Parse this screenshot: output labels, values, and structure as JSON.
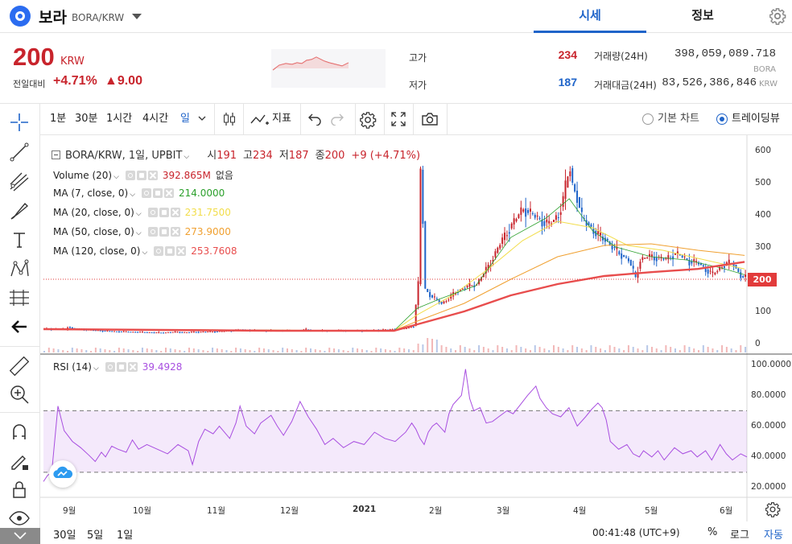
{
  "header": {
    "coin_name": "보라",
    "coin_pair": "BORA/KRW",
    "tabs": [
      "시세",
      "정보"
    ]
  },
  "summary": {
    "price": "200",
    "unit": "KRW",
    "change_label": "전일대비",
    "change_pct": "+4.71%",
    "change_abs": "▲9.00",
    "high_label": "고가",
    "high_value": "234",
    "low_label": "저가",
    "low_value": "187",
    "volume_label": "거래량(24H)",
    "volume_value": "398,059,089.718",
    "volume_unit": "BORA",
    "amount_label": "거래대금(24H)",
    "amount_value": "83,526,386,846",
    "amount_unit": "KRW"
  },
  "toolbar": {
    "intervals": [
      "1분",
      "30분",
      "1시간",
      "4시간",
      "일"
    ],
    "indicators_label": "지표",
    "basic_chart_label": "기본 차트",
    "trading_view_label": "트레이딩뷰",
    "selected_view": "트레이딩뷰"
  },
  "legend": {
    "symbol": "BORA/KRW, 1일, UPBIT",
    "open_label": "시",
    "open": "191",
    "high_label": "고",
    "high": "234",
    "low_label": "저",
    "low": "187",
    "close_label": "종",
    "close": "200",
    "change": "+9 (+4.71%)",
    "volume_name": "Volume (20)",
    "volume_value": "392.865M",
    "volume_extra": "없음",
    "ma7_name": "MA (7, close, 0)",
    "ma7_value": "214.0000",
    "ma20_name": "MA (20, close, 0)",
    "ma20_value": "231.7500",
    "ma50_name": "MA (50, close, 0)",
    "ma50_value": "273.9000",
    "ma120_name": "MA (120, close, 0)",
    "ma120_value": "253.7608",
    "rsi_name": "RSI (14)",
    "rsi_value": "39.4928"
  },
  "colors": {
    "up": "#c8242c",
    "down": "#1f64c9",
    "accent": "#1f64c9",
    "ma7": "#2ca02c",
    "ma20": "#f2dd4a",
    "ma50": "#f0a030",
    "ma120": "#e84d4d",
    "rsi": "#a84ee0"
  },
  "price_axis": {
    "ticks": [
      "600",
      "500",
      "400",
      "300",
      "200",
      "100",
      "0"
    ],
    "current": "200"
  },
  "rsi_axis": {
    "ticks": [
      "100.0000",
      "80.0000",
      "60.0000",
      "40.0000",
      "20.0000"
    ]
  },
  "time_axis": {
    "ticks": [
      "9월",
      "10월",
      "11월",
      "12월",
      "2021",
      "2월",
      "3월",
      "4월",
      "5월",
      "6월"
    ]
  },
  "bottom": {
    "ranges": [
      "30일",
      "5일",
      "1일"
    ],
    "clock": "00:41:48 (UTC+9)",
    "percent_label": "%",
    "log_label": "로그",
    "auto_label": "자동"
  },
  "chart_data": {
    "type": "candlestick",
    "title": "BORA/KRW, 1일, UPBIT",
    "ylim": [
      0,
      600
    ],
    "rsi_ylim": [
      20,
      100
    ],
    "rsi_band": [
      30,
      70
    ],
    "x_ticks": [
      "9월",
      "10월",
      "11월",
      "12월",
      "2021",
      "2월",
      "3월",
      "4월",
      "5월",
      "6월"
    ],
    "price_path": [
      [
        0,
        46
      ],
      [
        3,
        45
      ],
      [
        6,
        47
      ],
      [
        9,
        44
      ],
      [
        10,
        52
      ],
      [
        12,
        48
      ],
      [
        15,
        45
      ],
      [
        20,
        42
      ],
      [
        25,
        40
      ],
      [
        30,
        38
      ],
      [
        35,
        37
      ],
      [
        40,
        36
      ],
      [
        45,
        35
      ],
      [
        50,
        34
      ],
      [
        55,
        36
      ],
      [
        60,
        35
      ],
      [
        65,
        36
      ],
      [
        70,
        37
      ],
      [
        75,
        38
      ],
      [
        80,
        40
      ],
      [
        82,
        42
      ],
      [
        84,
        44
      ],
      [
        86,
        42
      ],
      [
        90,
        41
      ],
      [
        95,
        40
      ],
      [
        100,
        41
      ],
      [
        105,
        40
      ],
      [
        108,
        40
      ],
      [
        110,
        42
      ],
      [
        112,
        44
      ],
      [
        114,
        41
      ],
      [
        117,
        40
      ],
      [
        120,
        40
      ],
      [
        125,
        41
      ],
      [
        130,
        40
      ],
      [
        135,
        40
      ],
      [
        140,
        41
      ],
      [
        145,
        43
      ],
      [
        150,
        45
      ],
      [
        155,
        48
      ],
      [
        158,
        55
      ],
      [
        160,
        185
      ],
      [
        161,
        540
      ],
      [
        162,
        380
      ],
      [
        163,
        170
      ],
      [
        165,
        150
      ],
      [
        167,
        140
      ],
      [
        170,
        125
      ],
      [
        173,
        140
      ],
      [
        176,
        160
      ],
      [
        180,
        175
      ],
      [
        185,
        185
      ],
      [
        190,
        240
      ],
      [
        195,
        310
      ],
      [
        200,
        370
      ],
      [
        205,
        420
      ],
      [
        210,
        395
      ],
      [
        213,
        380
      ],
      [
        216,
        370
      ],
      [
        220,
        400
      ],
      [
        222,
        450
      ],
      [
        224,
        520
      ],
      [
        225,
        545
      ],
      [
        226,
        495
      ],
      [
        228,
        455
      ],
      [
        230,
        390
      ],
      [
        233,
        370
      ],
      [
        236,
        340
      ],
      [
        240,
        325
      ],
      [
        243,
        300
      ],
      [
        246,
        280
      ],
      [
        250,
        260
      ],
      [
        253,
        205
      ],
      [
        255,
        260
      ],
      [
        258,
        270
      ],
      [
        260,
        270
      ],
      [
        263,
        265
      ],
      [
        266,
        262
      ],
      [
        270,
        280
      ],
      [
        273,
        270
      ],
      [
        276,
        255
      ],
      [
        280,
        250
      ],
      [
        283,
        230
      ],
      [
        286,
        215
      ],
      [
        289,
        235
      ],
      [
        292,
        250
      ],
      [
        295,
        245
      ],
      [
        298,
        210
      ],
      [
        300,
        205
      ],
      [
        301,
        200
      ]
    ],
    "ma120_path": [
      [
        0,
        45
      ],
      [
        100,
        40
      ],
      [
        150,
        40
      ],
      [
        160,
        60
      ],
      [
        180,
        100
      ],
      [
        200,
        150
      ],
      [
        220,
        185
      ],
      [
        240,
        210
      ],
      [
        260,
        222
      ],
      [
        280,
        232
      ],
      [
        300,
        254
      ]
    ],
    "ma50_path": [
      [
        0,
        45
      ],
      [
        150,
        40
      ],
      [
        160,
        70
      ],
      [
        180,
        125
      ],
      [
        200,
        200
      ],
      [
        220,
        270
      ],
      [
        240,
        305
      ],
      [
        260,
        310
      ],
      [
        280,
        290
      ],
      [
        300,
        274
      ]
    ],
    "ma20_path": [
      [
        0,
        45
      ],
      [
        150,
        40
      ],
      [
        160,
        90
      ],
      [
        175,
        150
      ],
      [
        190,
        230
      ],
      [
        205,
        320
      ],
      [
        220,
        380
      ],
      [
        235,
        360
      ],
      [
        250,
        305
      ],
      [
        265,
        290
      ],
      [
        280,
        265
      ],
      [
        300,
        232
      ]
    ],
    "ma7_path": [
      [
        0,
        45
      ],
      [
        150,
        40
      ],
      [
        160,
        110
      ],
      [
        170,
        140
      ],
      [
        185,
        180
      ],
      [
        200,
        330
      ],
      [
        215,
        390
      ],
      [
        225,
        450
      ],
      [
        235,
        350
      ],
      [
        245,
        300
      ],
      [
        260,
        270
      ],
      [
        275,
        260
      ],
      [
        290,
        235
      ],
      [
        300,
        214
      ]
    ],
    "rsi_path": [
      [
        0,
        24
      ],
      [
        2,
        28
      ],
      [
        4,
        30
      ],
      [
        7,
        73
      ],
      [
        10,
        57
      ],
      [
        14,
        50
      ],
      [
        18,
        46
      ],
      [
        22,
        41
      ],
      [
        25,
        37
      ],
      [
        28,
        43
      ],
      [
        30,
        40
      ],
      [
        33,
        47
      ],
      [
        36,
        45
      ],
      [
        40,
        43
      ],
      [
        43,
        51
      ],
      [
        46,
        45
      ],
      [
        50,
        48
      ],
      [
        55,
        45
      ],
      [
        60,
        42
      ],
      [
        65,
        48
      ],
      [
        70,
        44
      ],
      [
        72,
        35
      ],
      [
        75,
        50
      ],
      [
        78,
        58
      ],
      [
        82,
        55
      ],
      [
        85,
        60
      ],
      [
        90,
        52
      ],
      [
        93,
        62
      ],
      [
        95,
        73
      ],
      [
        98,
        60
      ],
      [
        102,
        55
      ],
      [
        105,
        62
      ],
      [
        110,
        67
      ],
      [
        113,
        60
      ],
      [
        116,
        54
      ],
      [
        120,
        63
      ],
      [
        124,
        76
      ],
      [
        128,
        66
      ],
      [
        132,
        58
      ],
      [
        136,
        48
      ],
      [
        140,
        52
      ],
      [
        145,
        46
      ],
      [
        150,
        50
      ],
      [
        155,
        48
      ],
      [
        160,
        56
      ],
      [
        165,
        52
      ],
      [
        170,
        50
      ],
      [
        175,
        56
      ],
      [
        178,
        62
      ],
      [
        180,
        58
      ],
      [
        182,
        52
      ],
      [
        184,
        48
      ],
      [
        186,
        56
      ],
      [
        188,
        60
      ],
      [
        190,
        62
      ],
      [
        194,
        56
      ],
      [
        196,
        68
      ],
      [
        198,
        74
      ],
      [
        200,
        77
      ],
      [
        202,
        80
      ],
      [
        204,
        97
      ],
      [
        206,
        78
      ],
      [
        208,
        70
      ],
      [
        211,
        72
      ],
      [
        214,
        62
      ],
      [
        217,
        63
      ],
      [
        220,
        66
      ],
      [
        224,
        70
      ],
      [
        227,
        68
      ],
      [
        230,
        73
      ],
      [
        234,
        80
      ],
      [
        238,
        86
      ],
      [
        240,
        78
      ],
      [
        243,
        72
      ],
      [
        246,
        68
      ],
      [
        250,
        66
      ],
      [
        254,
        72
      ],
      [
        258,
        60
      ],
      [
        262,
        66
      ],
      [
        265,
        71
      ],
      [
        268,
        75
      ],
      [
        270,
        72
      ],
      [
        272,
        64
      ],
      [
        274,
        50
      ],
      [
        278,
        45
      ],
      [
        282,
        48
      ],
      [
        285,
        42
      ],
      [
        288,
        40
      ],
      [
        290,
        44
      ],
      [
        294,
        40
      ],
      [
        297,
        44
      ],
      [
        300,
        38
      ],
      [
        305,
        46
      ],
      [
        309,
        42
      ],
      [
        313,
        44
      ],
      [
        316,
        40
      ],
      [
        320,
        44
      ],
      [
        323,
        38
      ],
      [
        327,
        48
      ],
      [
        330,
        42
      ],
      [
        333,
        38
      ],
      [
        337,
        42
      ],
      [
        340,
        40
      ]
    ]
  }
}
